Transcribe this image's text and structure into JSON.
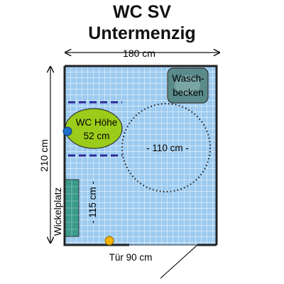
{
  "title": {
    "line1": "WC SV",
    "line2": "Untermenzig"
  },
  "dimensions": {
    "width": "180 cm",
    "height": "210 cm",
    "turning_circle": "- 110 cm -",
    "side_clearance": "- 115 cm -"
  },
  "fixtures": {
    "washbasin_line1": "Wasch-",
    "washbasin_line2": "becken",
    "wc_line1": "WC Höhe",
    "wc_line2": "52 cm",
    "changing_table": "Wickelplatz"
  },
  "door": {
    "label": "Tür 90 cm"
  },
  "colors": {
    "floor_tile": "#9dcbf0",
    "tile_grid": "#ffffff",
    "wall": "#222222",
    "wc": "#9ccc1a",
    "washbasin": "#5a8a8a",
    "changing_table": "#3a9b8b",
    "grab_bar": "#2b2b9c",
    "door_marker": "#f5b400",
    "flush_button": "#1f6fc7"
  }
}
